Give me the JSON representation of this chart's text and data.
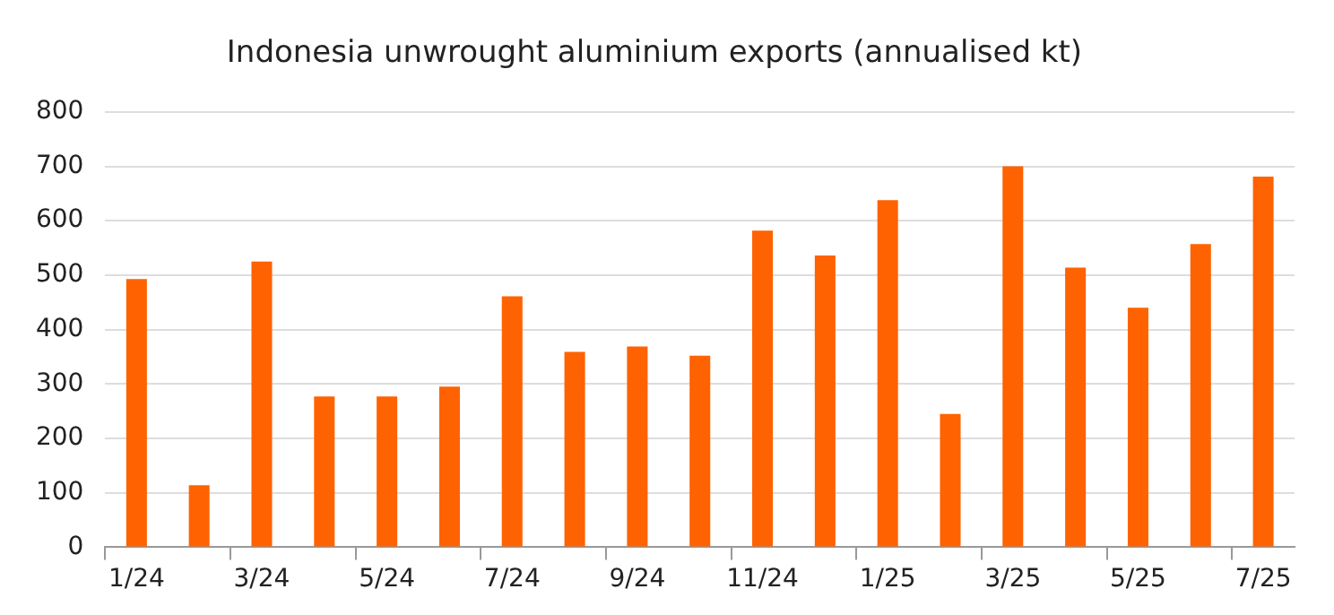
{
  "chart_data": {
    "type": "bar",
    "title": "Indonesia unwrought aluminium exports (annualised kt)",
    "categories": [
      "1/24",
      null,
      "3/24",
      null,
      "5/24",
      null,
      "7/24",
      null,
      "9/24",
      null,
      "11/24",
      null,
      "1/25",
      null,
      "3/25",
      null,
      "5/25",
      null,
      "7/25"
    ],
    "values": [
      493,
      114,
      525,
      277,
      277,
      295,
      461,
      359,
      369,
      352,
      582,
      536,
      638,
      245,
      700,
      514,
      440,
      557,
      681
    ],
    "color": "#ff6200",
    "ylim": [
      0,
      800
    ],
    "yticks": [
      0,
      100,
      200,
      300,
      400,
      500,
      600,
      700,
      800
    ],
    "grid": "y",
    "legend": false
  }
}
